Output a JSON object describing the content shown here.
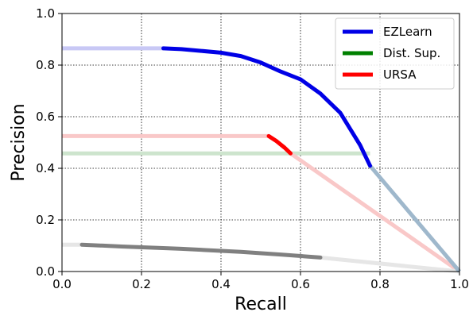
{
  "chart_data": {
    "type": "line",
    "xlabel": "Recall",
    "ylabel": "Precision",
    "xlim": [
      0,
      1
    ],
    "ylim": [
      0,
      1
    ],
    "grid": true,
    "grid_style": "dotted",
    "legend_position": "top-right",
    "x_ticks": [
      "0.0",
      "0.2",
      "0.4",
      "0.6",
      "0.8",
      "1.0"
    ],
    "y_ticks": [
      "0.0",
      "0.2",
      "0.4",
      "0.6",
      "0.8",
      "1.0"
    ],
    "series": [
      {
        "name": "EZLearn",
        "color": "#0000e6",
        "faded_color": "#c8c8f5",
        "extension_color": "#9fb8cc",
        "points": [
          [
            0.255,
            0.865
          ],
          [
            0.3,
            0.862
          ],
          [
            0.35,
            0.855
          ],
          [
            0.4,
            0.848
          ],
          [
            0.45,
            0.835
          ],
          [
            0.5,
            0.81
          ],
          [
            0.55,
            0.775
          ],
          [
            0.6,
            0.745
          ],
          [
            0.65,
            0.69
          ],
          [
            0.7,
            0.615
          ],
          [
            0.75,
            0.49
          ],
          [
            0.775,
            0.41
          ]
        ],
        "left_extension": [
          [
            0.0,
            0.865
          ],
          [
            0.255,
            0.865
          ]
        ],
        "right_extension": [
          [
            0.775,
            0.41
          ],
          [
            1.0,
            0.0
          ]
        ]
      },
      {
        "name": "Dist. Sup.",
        "color": "#008000",
        "faded_color": "#cde4cd",
        "points": [],
        "left_extension": [
          [
            0.0,
            0.458
          ],
          [
            0.775,
            0.458
          ]
        ],
        "right_extension": []
      },
      {
        "name": "URSA",
        "color": "#ff0000",
        "faded_color": "#f9c8c8",
        "points": [
          [
            0.52,
            0.525
          ],
          [
            0.54,
            0.505
          ],
          [
            0.56,
            0.48
          ],
          [
            0.575,
            0.458
          ]
        ],
        "left_extension": [
          [
            0.0,
            0.525
          ],
          [
            0.52,
            0.525
          ]
        ],
        "right_extension": [
          [
            0.575,
            0.458
          ],
          [
            1.0,
            0.0
          ]
        ]
      },
      {
        "color": "#808080",
        "faded_color": "#e6e6e6",
        "points": [
          [
            0.05,
            0.104
          ],
          [
            0.15,
            0.097
          ],
          [
            0.3,
            0.088
          ],
          [
            0.45,
            0.076
          ],
          [
            0.55,
            0.066
          ],
          [
            0.65,
            0.054
          ]
        ],
        "left_extension": [
          [
            0.0,
            0.104
          ],
          [
            0.05,
            0.104
          ]
        ],
        "right_extension": [
          [
            0.65,
            0.054
          ],
          [
            1.0,
            0.0
          ]
        ]
      }
    ]
  }
}
